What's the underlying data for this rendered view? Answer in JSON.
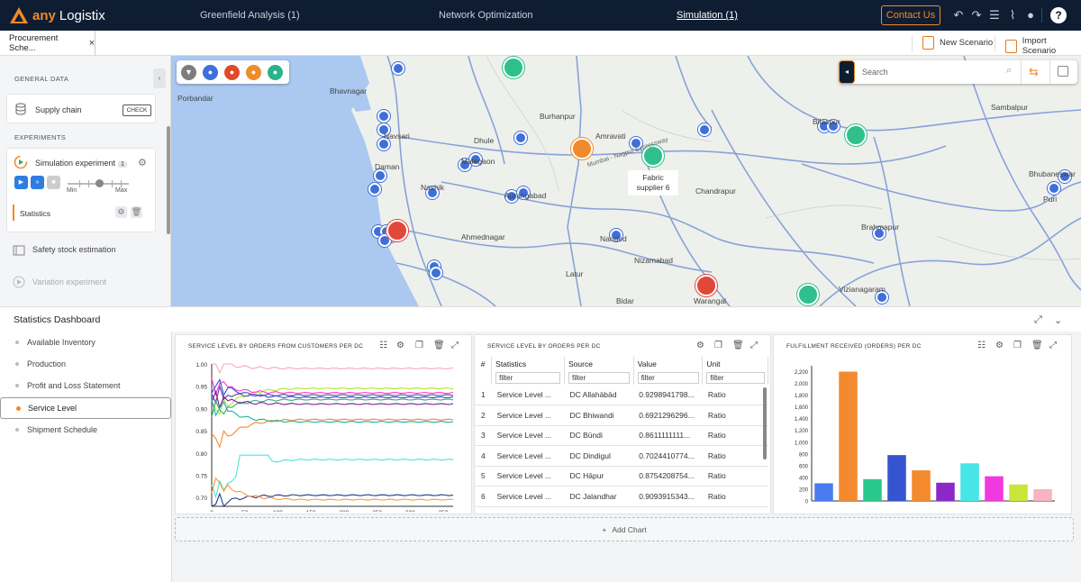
{
  "app": {
    "logo_prefix": "any",
    "logo_name": "Logistix",
    "nav": [
      "Greenfield Analysis (1)",
      "Network Optimization",
      "Simulation (1)"
    ],
    "contact": "Contact Us"
  },
  "tabs": {
    "active_tab": "Procurement Sche...",
    "new_scenario": "New Scenario",
    "import_scenario": "Import Scenario"
  },
  "left": {
    "general_heading": "GENERAL DATA",
    "supply_chain": "Supply chain",
    "check": "CHECK",
    "experiments_heading": "EXPERIMENTS",
    "sim_experiment": "Simulation experiment",
    "sim_count": "1",
    "min": "Min",
    "max": "Max",
    "statistics": "Statistics",
    "safety_stock": "Safety stock estimation",
    "variation": "Variation experiment"
  },
  "map": {
    "search_placeholder": "Search",
    "callout_line1": "Fabric",
    "callout_line2": "supplier 6",
    "labels": [
      "Porbandar",
      "Bhavnagar",
      "Navsari",
      "Daman",
      "Burhanpur",
      "Dhule",
      "Malegaon",
      "Nashik",
      "Aurangabad",
      "Ahmednagar",
      "Latur",
      "Nanded",
      "Nizamabad",
      "Chandrapur",
      "Warangal",
      "Bidar",
      "Vizianagaram",
      "Brahmapur",
      "Puri",
      "Bhubaneswar",
      "Sambalpur",
      "Bilaspur",
      "Amravati",
      "Mumbai - Nagpur Expressway"
    ]
  },
  "dashboard": {
    "title": "Statistics Dashboard",
    "nav": [
      "Available Inventory",
      "Production",
      "Profit and Loss Statement",
      "Service Level",
      "Shipment Schedule"
    ],
    "active_nav": "Service Level",
    "add_chart": "Add Chart"
  },
  "line_panel": {
    "title": "SERVICE LEVEL BY ORDERS FROM CUSTOMERS PER DC"
  },
  "table_panel": {
    "title": "SERVICE LEVEL BY ORDERS PER DC",
    "columns": [
      "#",
      "Statistics",
      "Source",
      "Value",
      "Unit"
    ],
    "filter": "filter",
    "rows": [
      [
        "1",
        "Service Level ...",
        "DC Allahābād",
        "0.9298941798...",
        "Ratio"
      ],
      [
        "2",
        "Service Level ...",
        "DC Bhiwandi",
        "0.6921296296...",
        "Ratio"
      ],
      [
        "3",
        "Service Level ...",
        "DC Būndi",
        "0.8611111111...",
        "Ratio"
      ],
      [
        "4",
        "Service Level ...",
        "DC Dindigul",
        "0.7024410774...",
        "Ratio"
      ],
      [
        "5",
        "Service Level ...",
        "DC Hāpur",
        "0.8754208754...",
        "Ratio"
      ],
      [
        "6",
        "Service Level ...",
        "DC Jalandhar",
        "0.9093915343...",
        "Ratio"
      ]
    ]
  },
  "bar_panel": {
    "title": "FULFILLMENT RECEIVED (ORDERS) PER DC"
  },
  "chart_data": [
    {
      "type": "line",
      "title": "SERVICE LEVEL BY ORDERS FROM CUSTOMERS PER DC",
      "x_ticks": [
        "0",
        "50",
        "100",
        "150",
        "200",
        "250",
        "300",
        "350"
      ],
      "y_ticks": [
        "1.00",
        "0.95",
        "0.90",
        "0.85",
        "0.80",
        "0.75",
        "0.70"
      ],
      "xlim": [
        0,
        365
      ],
      "ylim": [
        0.68,
        1.0
      ],
      "series": [
        {
          "color": "#f7a8b8",
          "start": 1.0,
          "end": 0.99
        },
        {
          "color": "#b6e32a",
          "start": 0.9,
          "end": 0.945
        },
        {
          "color": "#ff3ad1",
          "start": 0.95,
          "end": 0.935
        },
        {
          "color": "#6b3fa0",
          "start": 0.93,
          "end": 0.93
        },
        {
          "color": "#3050d0",
          "start": 0.95,
          "end": 0.925
        },
        {
          "color": "#2ab06a",
          "start": 0.9,
          "end": 0.92
        },
        {
          "color": "#7a1aa0",
          "start": 0.92,
          "end": 0.91
        },
        {
          "color": "#f38a2e",
          "start": 0.83,
          "end": 0.875
        },
        {
          "color": "#1fb0a0",
          "start": 0.9,
          "end": 0.87
        },
        {
          "color": "#47e5e0",
          "start": 0.72,
          "end": 0.785
        },
        {
          "color": "#1e3a8a",
          "start": 0.69,
          "end": 0.705
        },
        {
          "color": "#ff9930",
          "start": 0.73,
          "end": 0.695
        }
      ]
    },
    {
      "type": "bar",
      "title": "FULFILLMENT RECEIVED (ORDERS) PER DC",
      "ylim": [
        0,
        2300
      ],
      "y_ticks": [
        "0",
        "200",
        "400",
        "600",
        "800",
        "1,000",
        "1,200",
        "1,400",
        "1,600",
        "1,800",
        "2,000",
        "2,200"
      ],
      "values": [
        300,
        2200,
        370,
        780,
        520,
        310,
        640,
        420,
        280,
        200
      ],
      "colors": [
        "#4a7cf0",
        "#f38a2e",
        "#2ac78a",
        "#3555d0",
        "#f38a2e",
        "#8c28c8",
        "#47e5e5",
        "#f03ae0",
        "#c8e63a",
        "#f7b5c0"
      ]
    }
  ],
  "colors": {
    "brand": "#f0892a",
    "topbar": "#0f1d33",
    "accent_blue": "#2f7de1"
  }
}
